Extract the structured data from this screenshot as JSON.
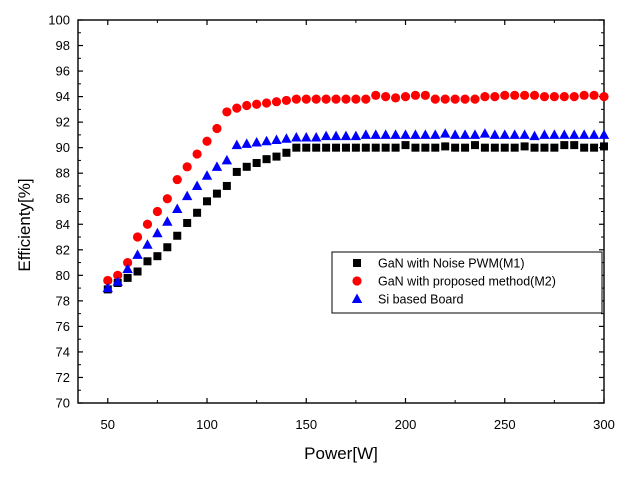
{
  "chart_data": {
    "type": "scatter",
    "title": "",
    "xlabel": "Power[W]",
    "ylabel": "Efficienty[%]",
    "xlim": [
      35,
      300
    ],
    "ylim": [
      70,
      100
    ],
    "x_ticks": [
      "50",
      "100",
      "150",
      "200",
      "250",
      "300"
    ],
    "y_ticks": [
      "70",
      "72",
      "74",
      "76",
      "78",
      "80",
      "82",
      "84",
      "86",
      "88",
      "90",
      "92",
      "94",
      "96",
      "98",
      "100"
    ],
    "grid": false,
    "legend_position": "right",
    "series": [
      {
        "name": "GaN with Noise PWM(M1)",
        "marker": "square",
        "color": "#000000",
        "x": [
          50,
          55,
          60,
          65,
          70,
          75,
          80,
          85,
          90,
          95,
          100,
          105,
          110,
          115,
          120,
          125,
          130,
          135,
          140,
          145,
          150,
          155,
          160,
          165,
          170,
          175,
          180,
          185,
          190,
          195,
          200,
          205,
          210,
          215,
          220,
          225,
          230,
          235,
          240,
          245,
          250,
          255,
          260,
          265,
          270,
          275,
          280,
          285,
          290,
          295,
          300
        ],
        "y": [
          78.9,
          79.4,
          79.8,
          80.3,
          81.1,
          81.5,
          82.2,
          83.1,
          84.1,
          84.9,
          85.8,
          86.4,
          87.0,
          88.1,
          88.5,
          88.8,
          89.1,
          89.3,
          89.6,
          90.0,
          90.0,
          90.0,
          90.0,
          90.0,
          90.0,
          90.0,
          90.0,
          90.0,
          90.0,
          90.0,
          90.2,
          90.0,
          90.0,
          90.0,
          90.1,
          90.0,
          90.0,
          90.2,
          90.0,
          90.0,
          90.0,
          90.0,
          90.1,
          90.0,
          90.0,
          90.0,
          90.2,
          90.2,
          90.0,
          90.0,
          90.1
        ]
      },
      {
        "name": "GaN with proposed method(M2)",
        "marker": "circle",
        "color": "#ff0000",
        "x": [
          50,
          55,
          60,
          65,
          70,
          75,
          80,
          85,
          90,
          95,
          100,
          105,
          110,
          115,
          120,
          125,
          130,
          135,
          140,
          145,
          150,
          155,
          160,
          165,
          170,
          175,
          180,
          185,
          190,
          195,
          200,
          205,
          210,
          215,
          220,
          225,
          230,
          235,
          240,
          245,
          250,
          255,
          260,
          265,
          270,
          275,
          280,
          285,
          290,
          295,
          300
        ],
        "y": [
          79.6,
          80.0,
          81.0,
          83.0,
          84.0,
          85.0,
          86.0,
          87.5,
          88.5,
          89.5,
          90.5,
          91.5,
          92.8,
          93.1,
          93.3,
          93.4,
          93.5,
          93.6,
          93.7,
          93.8,
          93.8,
          93.8,
          93.8,
          93.8,
          93.8,
          93.8,
          93.8,
          94.1,
          94.0,
          93.9,
          94.0,
          94.1,
          94.1,
          93.8,
          93.8,
          93.8,
          93.8,
          93.8,
          94.0,
          94.0,
          94.1,
          94.1,
          94.1,
          94.1,
          94.0,
          94.0,
          94.0,
          94.0,
          94.1,
          94.1,
          94.0
        ]
      },
      {
        "name": "Si based Board",
        "marker": "triangle",
        "color": "#0000ff",
        "x": [
          50,
          55,
          60,
          65,
          70,
          75,
          80,
          85,
          90,
          95,
          100,
          105,
          110,
          115,
          120,
          125,
          130,
          135,
          140,
          145,
          150,
          155,
          160,
          165,
          170,
          175,
          180,
          185,
          190,
          195,
          200,
          205,
          210,
          215,
          220,
          225,
          230,
          235,
          240,
          245,
          250,
          255,
          260,
          265,
          270,
          275,
          280,
          285,
          290,
          295,
          300
        ],
        "y": [
          79.0,
          79.5,
          80.5,
          81.6,
          82.4,
          83.3,
          84.2,
          85.2,
          86.2,
          87.0,
          87.8,
          88.5,
          89.0,
          90.2,
          90.3,
          90.4,
          90.5,
          90.6,
          90.7,
          90.8,
          90.8,
          90.8,
          90.9,
          90.9,
          90.9,
          90.9,
          91.0,
          91.0,
          91.0,
          91.0,
          91.0,
          91.0,
          91.0,
          91.0,
          91.1,
          91.0,
          91.0,
          91.0,
          91.1,
          91.0,
          91.0,
          91.0,
          91.0,
          90.9,
          91.0,
          91.0,
          91.0,
          91.0,
          91.0,
          91.0,
          91.0
        ]
      }
    ]
  }
}
